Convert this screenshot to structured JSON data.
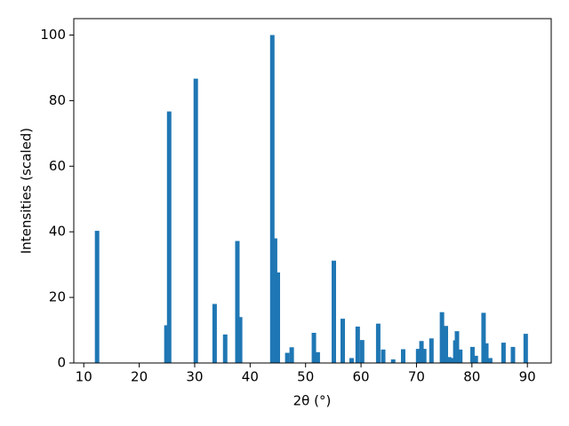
{
  "chart_data": {
    "type": "bar",
    "xlabel": "2θ (°)",
    "ylabel": "Intensities (scaled)",
    "x": [
      12.4,
      24.9,
      25.4,
      30.2,
      33.6,
      35.5,
      37.7,
      38.2,
      44.0,
      44.5,
      45.0,
      46.7,
      47.5,
      51.5,
      52.2,
      55.1,
      56.7,
      58.3,
      59.4,
      60.2,
      63.1,
      64.0,
      65.8,
      67.6,
      70.3,
      70.9,
      71.4,
      72.7,
      74.6,
      75.3,
      75.9,
      76.5,
      77.0,
      77.3,
      77.9,
      80.1,
      80.7,
      82.1,
      82.6,
      83.3,
      85.7,
      87.4,
      89.7
    ],
    "values": [
      40.3,
      11.5,
      76.7,
      86.7,
      18,
      8.7,
      37.2,
      14,
      100,
      38,
      27.6,
      3.1,
      4.8,
      9.2,
      3.3,
      31.2,
      13.5,
      1.5,
      11.1,
      7.0,
      12,
      4.1,
      1.1,
      4.2,
      4.3,
      6.7,
      4.3,
      7.5,
      15.5,
      11.3,
      1.8,
      1.5,
      6.9,
      9.7,
      4.1,
      4.9,
      2.2,
      15.3,
      6.0,
      1.5,
      6.2,
      4.9,
      8.9
    ],
    "color": "#1f77b4",
    "xlim": [
      8.2,
      94.3
    ],
    "xticks": [
      10,
      20,
      30,
      40,
      50,
      60,
      70,
      80,
      90
    ],
    "ylim": [
      0,
      105
    ],
    "yticks": [
      0,
      20,
      40,
      60,
      80,
      100
    ]
  }
}
